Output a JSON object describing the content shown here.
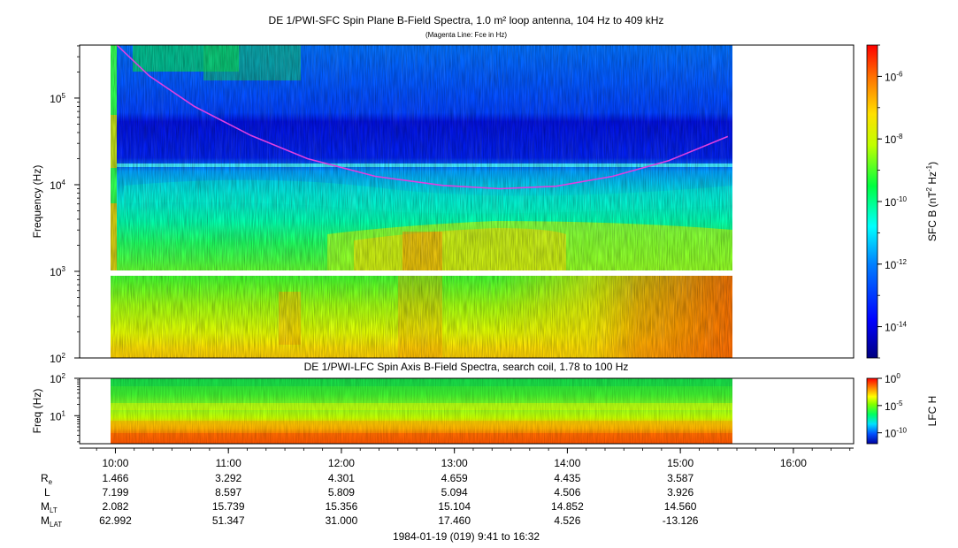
{
  "colors": {
    "fce_line": "#e040e0",
    "frame": "#000000",
    "gap": "#ffffff"
  },
  "chart_data": [
    {
      "type": "heatmap",
      "title": "DE 1/PWI-SFC  Spin Plane B-Field Spectra, 1.0 m² loop antenna, 104 Hz to 409 kHz",
      "subtitle": "(Magenta Line: Fce in Hz)",
      "ylabel": "Frequency (Hz)",
      "y_scale": "log",
      "ylim": [
        100,
        409000
      ],
      "y_ticks": [
        {
          "value": 100,
          "base": "10",
          "exp": "2"
        },
        {
          "value": 1000,
          "base": "10",
          "exp": "3"
        },
        {
          "value": 10000,
          "base": "10",
          "exp": "4"
        },
        {
          "value": 100000,
          "base": "10",
          "exp": "5"
        }
      ],
      "x_range": [
        "9:41",
        "16:32"
      ],
      "data_time_span": [
        "9:56",
        "15:25"
      ],
      "gap_frequency_hz": [
        1000,
        900
      ],
      "colorbar": {
        "label_prefix": "SFC B (nT",
        "label_exp1": "2",
        "label_mid": " Hz",
        "label_exp2": "-1",
        "label_suffix": ")",
        "scale": "log",
        "range": [
          1e-15,
          1e-05
        ],
        "ticks": [
          {
            "value": 1e-06,
            "base": "10",
            "exp": "-6"
          },
          {
            "value": 1e-08,
            "base": "10",
            "exp": "-8"
          },
          {
            "value": 1e-10,
            "base": "10",
            "exp": "-10"
          },
          {
            "value": 1e-12,
            "base": "10",
            "exp": "-12"
          },
          {
            "value": 1e-14,
            "base": "10",
            "exp": "-14"
          }
        ]
      },
      "fce_line": {
        "name": "Fce",
        "time_hours": [
          9.98,
          10.3,
          10.7,
          11.2,
          11.7,
          12.3,
          12.9,
          13.4,
          13.9,
          14.4,
          14.9,
          15.42
        ],
        "freq_hz": [
          450000,
          180000,
          80000,
          37000,
          20000,
          12500,
          9800,
          9000,
          9600,
          12500,
          19000,
          36000
        ]
      }
    },
    {
      "type": "heatmap",
      "title": "DE 1/PWI-LFC  Spin Axis B-Field Spectra, search coil, 1.78 to 100 Hz",
      "ylabel": "Freq (Hz)",
      "y_scale": "log",
      "ylim": [
        1.78,
        100
      ],
      "y_ticks": [
        {
          "value": 10,
          "base": "10",
          "exp": "1"
        },
        {
          "value": 100,
          "base": "10",
          "exp": "2"
        }
      ],
      "colorbar": {
        "label": "LFC H",
        "scale": "log",
        "range": [
          1e-12,
          1
        ],
        "ticks": [
          {
            "value": 1,
            "base": "10",
            "exp": "0"
          },
          {
            "value": 1e-05,
            "base": "10",
            "exp": "-5"
          },
          {
            "value": 1e-10,
            "base": "10",
            "exp": "-10"
          }
        ]
      }
    }
  ],
  "x_axis": {
    "start_hours": 9.6833,
    "end_hours": 16.5333,
    "ticks": [
      {
        "hour": 10,
        "label": "10:00"
      },
      {
        "hour": 11,
        "label": "11:00"
      },
      {
        "hour": 12,
        "label": "12:00"
      },
      {
        "hour": 13,
        "label": "13:00"
      },
      {
        "hour": 14,
        "label": "14:00"
      },
      {
        "hour": 15,
        "label": "15:00"
      },
      {
        "hour": 16,
        "label": "16:00"
      }
    ],
    "footer": "1984-01-19 (019) 9:41 to 16:32"
  },
  "ephemeris": [
    {
      "label": "R",
      "sub": "e",
      "values": [
        "1.466",
        "3.292",
        "4.301",
        "4.659",
        "4.435",
        "3.587"
      ]
    },
    {
      "label": "L",
      "sub": "",
      "values": [
        "7.199",
        "8.597",
        "5.809",
        "5.094",
        "4.506",
        "3.926"
      ]
    },
    {
      "label": "M",
      "sub": "LT",
      "values": [
        "2.082",
        "15.739",
        "15.356",
        "15.104",
        "14.852",
        "14.560"
      ]
    },
    {
      "label": "M",
      "sub": "LAT",
      "values": [
        "62.992",
        "51.347",
        "31.000",
        "17.460",
        "4.526",
        "-13.126"
      ]
    }
  ]
}
